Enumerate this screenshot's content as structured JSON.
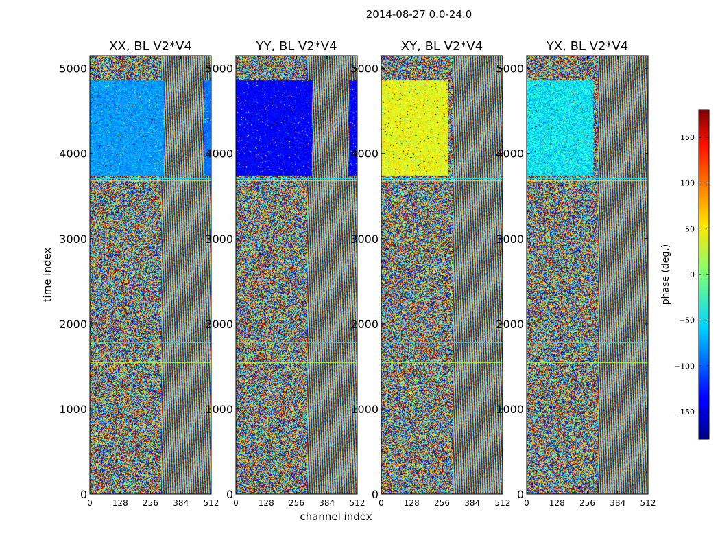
{
  "figure": {
    "suptitle": "2014-08-27 0.0-24.0"
  },
  "chart_data": [
    {
      "type": "heatmap",
      "title": "XX, BL V2*V4",
      "xlabel": "",
      "ylabel": "time index",
      "xlim": [
        0,
        512
      ],
      "ylim": [
        0,
        5150
      ],
      "xticks": [
        0,
        128,
        256,
        384,
        512
      ],
      "yticks": [
        0,
        1000,
        2000,
        3000,
        4000,
        5000
      ],
      "bands": [
        {
          "t0": 3740,
          "t1": 4860,
          "c0": 0,
          "c1": 310,
          "phase": -80,
          "noise": 22
        },
        {
          "t0": 3740,
          "t1": 4860,
          "c0": 480,
          "c1": 512,
          "phase": -95,
          "noise": 18
        }
      ]
    },
    {
      "type": "heatmap",
      "title": "YY, BL V2*V4",
      "xlabel": "",
      "ylabel": "",
      "xlim": [
        0,
        512
      ],
      "ylim": [
        0,
        5150
      ],
      "xticks": [
        0,
        128,
        256,
        384,
        512
      ],
      "yticks": [
        0,
        1000,
        2000,
        3000,
        4000,
        5000
      ],
      "bands": [
        {
          "t0": 3740,
          "t1": 4860,
          "c0": 0,
          "c1": 320,
          "phase": -135,
          "noise": 12
        },
        {
          "t0": 3740,
          "t1": 4860,
          "c0": 475,
          "c1": 512,
          "phase": -135,
          "noise": 12
        }
      ]
    },
    {
      "type": "heatmap",
      "title": "XY, BL V2*V4",
      "xlabel": "",
      "ylabel": "",
      "xlim": [
        0,
        512
      ],
      "ylim": [
        0,
        5150
      ],
      "xticks": [
        0,
        128,
        256,
        384,
        512
      ],
      "yticks": [
        0,
        1000,
        2000,
        3000,
        4000,
        5000
      ],
      "bands": [
        {
          "t0": 3740,
          "t1": 4860,
          "c0": 0,
          "c1": 280,
          "phase": 40,
          "noise": 30
        }
      ]
    },
    {
      "type": "heatmap",
      "title": "YX, BL V2*V4",
      "xlabel": "",
      "ylabel": "",
      "xlim": [
        0,
        512
      ],
      "ylim": [
        0,
        5150
      ],
      "xticks": [
        0,
        128,
        256,
        384,
        512
      ],
      "yticks": [
        0,
        1000,
        2000,
        3000,
        4000,
        5000
      ],
      "bands": [
        {
          "t0": 3740,
          "t1": 4860,
          "c0": 0,
          "c1": 280,
          "phase": -50,
          "noise": 35
        }
      ]
    }
  ],
  "shared": {
    "xlabel": "channel index",
    "colormap": "jet",
    "colorbar": {
      "label": "phase (deg.)",
      "range": [
        -180,
        180
      ],
      "ticks": [
        150,
        100,
        50,
        0,
        -50,
        -100,
        -150
      ]
    }
  }
}
